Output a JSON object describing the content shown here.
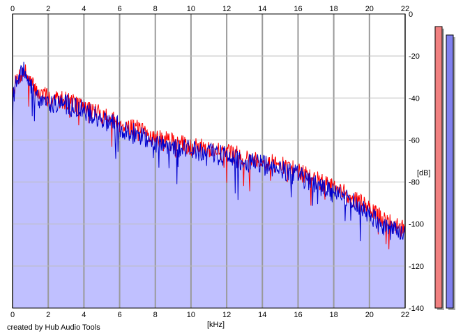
{
  "chart_data": {
    "type": "area",
    "title": "",
    "xlabel": "[kHz]",
    "ylabel": "[dB]",
    "xlim": [
      0,
      22
    ],
    "ylim": [
      -140,
      0
    ],
    "x_ticks": [
      0,
      2,
      4,
      6,
      8,
      10,
      12,
      14,
      16,
      18,
      20,
      22
    ],
    "y_ticks": [
      0,
      -20,
      -40,
      -60,
      -80,
      -100,
      -120,
      -140
    ],
    "grid": true,
    "series": [
      {
        "color": "#ff0000",
        "points": [
          [
            0,
            -37
          ],
          [
            0.3,
            -30
          ],
          [
            0.7,
            -27
          ],
          [
            1.0,
            -33
          ],
          [
            1.5,
            -38
          ],
          [
            2,
            -40
          ],
          [
            3,
            -41
          ],
          [
            4,
            -44
          ],
          [
            5,
            -48
          ],
          [
            6,
            -52
          ],
          [
            7,
            -55
          ],
          [
            8,
            -59
          ],
          [
            9,
            -61
          ],
          [
            10,
            -63
          ],
          [
            11,
            -64
          ],
          [
            12,
            -66
          ],
          [
            13,
            -68
          ],
          [
            14,
            -70
          ],
          [
            15,
            -72
          ],
          [
            16,
            -75
          ],
          [
            17,
            -79
          ],
          [
            18,
            -83
          ],
          [
            19,
            -87
          ],
          [
            20,
            -93
          ],
          [
            21,
            -99
          ],
          [
            22,
            -103
          ]
        ]
      },
      {
        "color": "#0000cc",
        "points": [
          [
            0,
            -40
          ],
          [
            0.3,
            -31
          ],
          [
            0.7,
            -27
          ],
          [
            1.0,
            -34
          ],
          [
            1.5,
            -40
          ],
          [
            2,
            -42
          ],
          [
            3,
            -43
          ],
          [
            4,
            -46
          ],
          [
            5,
            -50
          ],
          [
            6,
            -54
          ],
          [
            7,
            -57
          ],
          [
            8,
            -61
          ],
          [
            9,
            -63
          ],
          [
            10,
            -65
          ],
          [
            11,
            -66
          ],
          [
            12,
            -68
          ],
          [
            13,
            -70
          ],
          [
            14,
            -72
          ],
          [
            15,
            -74
          ],
          [
            16,
            -77
          ],
          [
            17,
            -81
          ],
          [
            18,
            -85
          ],
          [
            19,
            -89
          ],
          [
            20,
            -96
          ],
          [
            21,
            -102
          ],
          [
            22,
            -106
          ]
        ]
      }
    ],
    "fill_color": "#c0c0ff",
    "meters": [
      {
        "color": "#f08080",
        "level_db": -6
      },
      {
        "color": "#8080ee",
        "level_db": -10
      }
    ]
  },
  "footer": {
    "credit": "created by Hub Audio Tools"
  }
}
